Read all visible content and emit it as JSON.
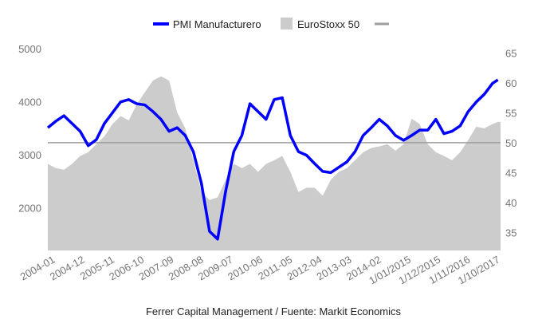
{
  "chart_data": {
    "type": "line",
    "title": "",
    "source_note": "Ferrer Capital Management / Fuente: Markit Economics",
    "legend_position": "top",
    "grid": false,
    "x_tick_labels": [
      "2004-01",
      "2004-12",
      "2005-11",
      "2006-10",
      "2007-09",
      "2008-08",
      "2009-07",
      "2010-06",
      "2011-05",
      "2012-04",
      "2013-03",
      "2014-02",
      "1/01/2015",
      "1/12/2015",
      "1/11/2016",
      "1/10/2017"
    ],
    "x": [
      "2004-01",
      "2004-04",
      "2004-07",
      "2004-10",
      "2005-01",
      "2005-04",
      "2005-07",
      "2005-10",
      "2006-01",
      "2006-04",
      "2006-07",
      "2006-10",
      "2007-01",
      "2007-04",
      "2007-07",
      "2007-10",
      "2008-01",
      "2008-04",
      "2008-07",
      "2008-10",
      "2009-01",
      "2009-04",
      "2009-07",
      "2009-10",
      "2010-01",
      "2010-04",
      "2010-07",
      "2010-10",
      "2011-01",
      "2011-04",
      "2011-07",
      "2011-10",
      "2012-01",
      "2012-04",
      "2012-07",
      "2012-10",
      "2013-01",
      "2013-04",
      "2013-07",
      "2013-10",
      "2014-01",
      "2014-04",
      "2014-07",
      "2014-10",
      "2015-01",
      "2015-04",
      "2015-07",
      "2015-10",
      "2016-01",
      "2016-04",
      "2016-07",
      "2016-10",
      "2017-01",
      "2017-04",
      "2017-07",
      "2017-10",
      "2017-12"
    ],
    "left_axis": {
      "ticks": [
        2000,
        3000,
        4000,
        5000
      ],
      "ylim": [
        1200,
        5000
      ]
    },
    "right_axis": {
      "ticks": [
        35,
        40,
        45,
        50,
        55,
        60,
        65
      ],
      "ylim": [
        32,
        65.7
      ]
    },
    "reference_line": {
      "axis": "right",
      "value": 50,
      "color": "#9e9e9e"
    },
    "series": [
      {
        "name": "PMI Manufacturero",
        "type": "line",
        "axis": "right",
        "color": "#0000ff",
        "values": [
          52.5,
          53.6,
          54.5,
          53.2,
          51.9,
          49.5,
          50.5,
          53.2,
          55,
          56.8,
          57.2,
          56.5,
          56.3,
          55.2,
          53.9,
          51.9,
          52.5,
          51.2,
          48.5,
          43.2,
          35.2,
          33.9,
          41.9,
          48.5,
          51.2,
          56.5,
          55.2,
          53.9,
          57.2,
          57.5,
          51.2,
          48.5,
          47.9,
          46.5,
          45.2,
          45,
          45.9,
          46.8,
          48.5,
          51.2,
          52.5,
          53.9,
          52.8,
          51.2,
          50.4,
          51.2,
          52.1,
          52.1,
          53.9,
          51.5,
          51.9,
          52.8,
          55.2,
          56.8,
          58.1,
          59.9,
          60.5
        ]
      },
      {
        "name": "EuroStoxx 50",
        "type": "area",
        "axis": "left",
        "color": "#cccccc",
        "values": [
          2830,
          2750,
          2720,
          2830,
          2980,
          3050,
          3200,
          3350,
          3580,
          3730,
          3650,
          3950,
          4180,
          4400,
          4480,
          4400,
          3800,
          3500,
          2900,
          2300,
          2150,
          2200,
          2530,
          2830,
          2750,
          2830,
          2680,
          2830,
          2900,
          2980,
          2680,
          2300,
          2380,
          2380,
          2230,
          2530,
          2680,
          2750,
          2900,
          3050,
          3130,
          3160,
          3200,
          3080,
          3200,
          3680,
          3580,
          3200,
          3050,
          2980,
          2900,
          3050,
          3280,
          3530,
          3500,
          3580,
          3620
        ]
      }
    ]
  }
}
